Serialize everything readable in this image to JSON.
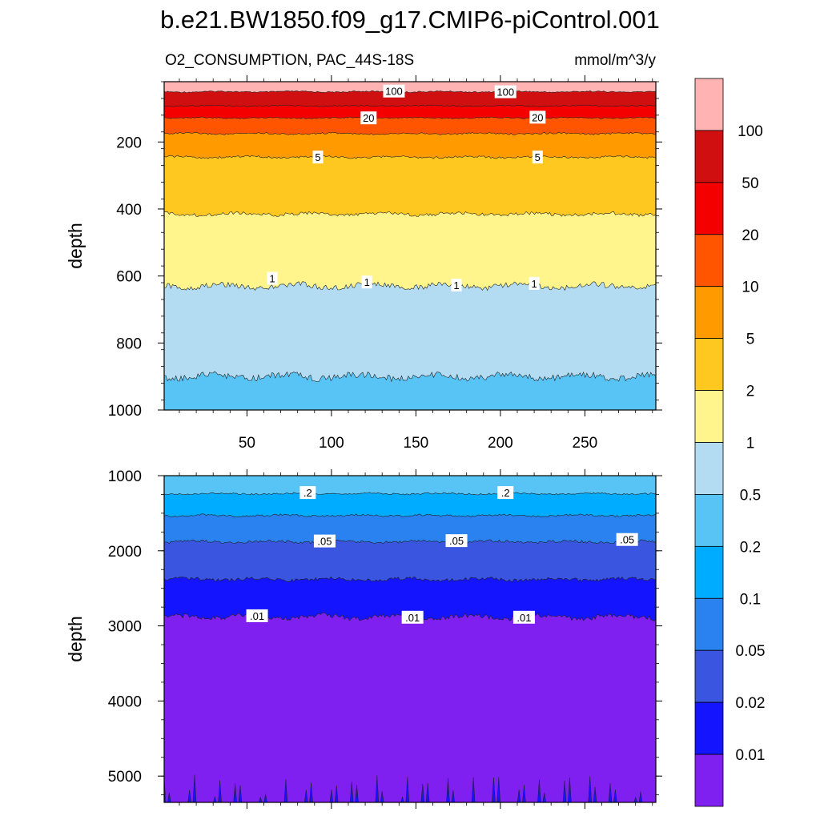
{
  "title": "b.e21.BW1850.f09_g17.CMIP6-piControl.001",
  "chart_data": {
    "type": "filled-contour",
    "variable": "O2_CONSUMPTION, PAC_44S-18S",
    "units": "mmol/m^3/y",
    "x": {
      "range": [
        1,
        292
      ],
      "ticks": [
        "50",
        "100",
        "150",
        "200",
        "250"
      ],
      "tick_values": [
        50,
        100,
        150,
        200,
        250
      ]
    },
    "contour_levels": [
      0.01,
      0.02,
      0.05,
      0.1,
      0.2,
      0.5,
      1,
      2,
      5,
      10,
      20,
      50,
      100
    ],
    "colorbar": {
      "labels": [
        "100",
        "50",
        "20",
        "10",
        "5",
        "2",
        "1",
        "0.5",
        "0.2",
        "0.1",
        "0.05",
        "0.02",
        "0.01"
      ],
      "colors_top_to_bottom": [
        "#ffb3b3",
        "#d01010",
        "#f50000",
        "#ff5500",
        "#ff9a00",
        "#ffc820",
        "#fff58c",
        "#b3dcf2",
        "#58c4f5",
        "#00acff",
        "#2a82f0",
        "#3a55e0",
        "#1414ff",
        "#8020f0"
      ]
    },
    "panels": [
      {
        "name": "upper",
        "ylabel": "depth",
        "ylim": [
          1000,
          20
        ],
        "y_ticks": [
          "200",
          "400",
          "600",
          "800",
          "1000"
        ],
        "y_tick_values": [
          200,
          400,
          600,
          800,
          1000
        ],
        "boundary_depths": [
          {
            "level": 100,
            "depth": 50,
            "amp": 3
          },
          {
            "level": 50,
            "depth": 92,
            "amp": 3
          },
          {
            "level": 20,
            "depth": 128,
            "amp": 3
          },
          {
            "level": 10,
            "depth": 175,
            "amp": 4
          },
          {
            "level": 5,
            "depth": 245,
            "amp": 5
          },
          {
            "level": 2,
            "depth": 415,
            "amp": 8
          },
          {
            "level": 1,
            "depth": 630,
            "amp": 14
          },
          {
            "level": 0.5,
            "depth": 900,
            "amp": 16
          }
        ],
        "bands_top_to_bottom": [
          "#ffb3b3",
          "#d01010",
          "#f50000",
          "#ff5500",
          "#ff9a00",
          "#ffc820",
          "#fff58c",
          "#b3dcf2",
          "#58c4f5"
        ],
        "contour_labels": [
          {
            "text": "100",
            "x": 137,
            "depth": 48
          },
          {
            "text": "100",
            "x": 203,
            "depth": 50
          },
          {
            "text": "20",
            "x": 122,
            "depth": 128
          },
          {
            "text": "20",
            "x": 222,
            "depth": 126
          },
          {
            "text": "5",
            "x": 92,
            "depth": 245
          },
          {
            "text": "5",
            "x": 222,
            "depth": 245
          },
          {
            "text": "1",
            "x": 65,
            "depth": 607
          },
          {
            "text": "1",
            "x": 121,
            "depth": 618
          },
          {
            "text": "1",
            "x": 174,
            "depth": 627
          },
          {
            "text": "1",
            "x": 220,
            "depth": 622
          }
        ]
      },
      {
        "name": "lower",
        "ylabel": "depth",
        "ylim": [
          5350,
          1000
        ],
        "y_ticks": [
          "1000",
          "2000",
          "3000",
          "4000",
          "5000"
        ],
        "y_tick_values": [
          1000,
          2000,
          3000,
          4000,
          5000
        ],
        "boundary_depths": [
          {
            "level": 0.2,
            "depth": 1240,
            "amp": 18
          },
          {
            "level": 0.1,
            "depth": 1530,
            "amp": 22
          },
          {
            "level": 0.05,
            "depth": 1880,
            "amp": 28
          },
          {
            "level": 0.02,
            "depth": 2380,
            "amp": 35
          },
          {
            "level": 0.01,
            "depth": 2880,
            "amp": 55
          }
        ],
        "bands_top_to_bottom": [
          "#58c4f5",
          "#00acff",
          "#2a82f0",
          "#3a55e0",
          "#1414ff",
          "#8020f0"
        ],
        "contour_labels": [
          {
            "text": ".2",
            "x": 86,
            "depth": 1225
          },
          {
            "text": ".2",
            "x": 203,
            "depth": 1225
          },
          {
            "text": ".05",
            "x": 96,
            "depth": 1870
          },
          {
            "text": ".05",
            "x": 174,
            "depth": 1865
          },
          {
            "text": ".05",
            "x": 275,
            "depth": 1850
          },
          {
            "text": ".01",
            "x": 56,
            "depth": 2865
          },
          {
            "text": ".01",
            "x": 148,
            "depth": 2885
          },
          {
            "text": ".01",
            "x": 214,
            "depth": 2885
          }
        ]
      }
    ]
  }
}
